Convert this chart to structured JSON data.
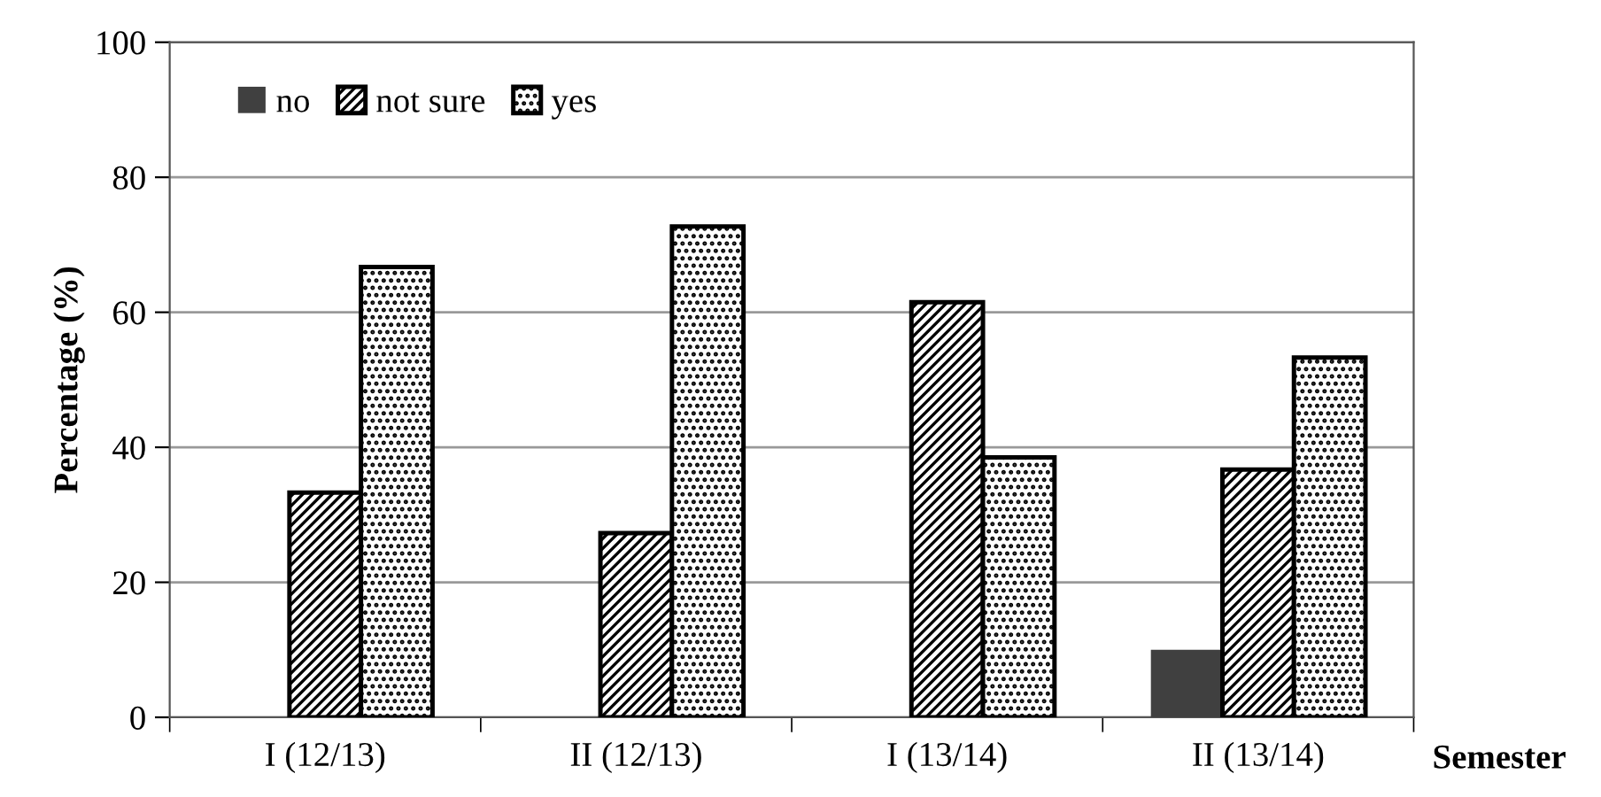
{
  "chart_data": {
    "type": "bar",
    "xlabel": "Semester",
    "ylabel": "Percentage (%)",
    "categories": [
      "I (12/13)",
      "II (12/13)",
      "I (13/14)",
      "II (13/14)"
    ],
    "series": [
      {
        "name": "no",
        "color": "#404040",
        "values": [
          0,
          0,
          0,
          10
        ]
      },
      {
        "name": "not sure",
        "color": "#000000",
        "values": [
          33.3,
          27.3,
          61.5,
          36.7
        ]
      },
      {
        "name": "yes",
        "color": "#000000",
        "values": [
          66.7,
          72.7,
          38.5,
          53.3
        ]
      }
    ],
    "ylim": [
      0,
      100
    ],
    "yticks": [
      0,
      20,
      40,
      60,
      80,
      100
    ],
    "grid": "y",
    "legend": "top left"
  }
}
